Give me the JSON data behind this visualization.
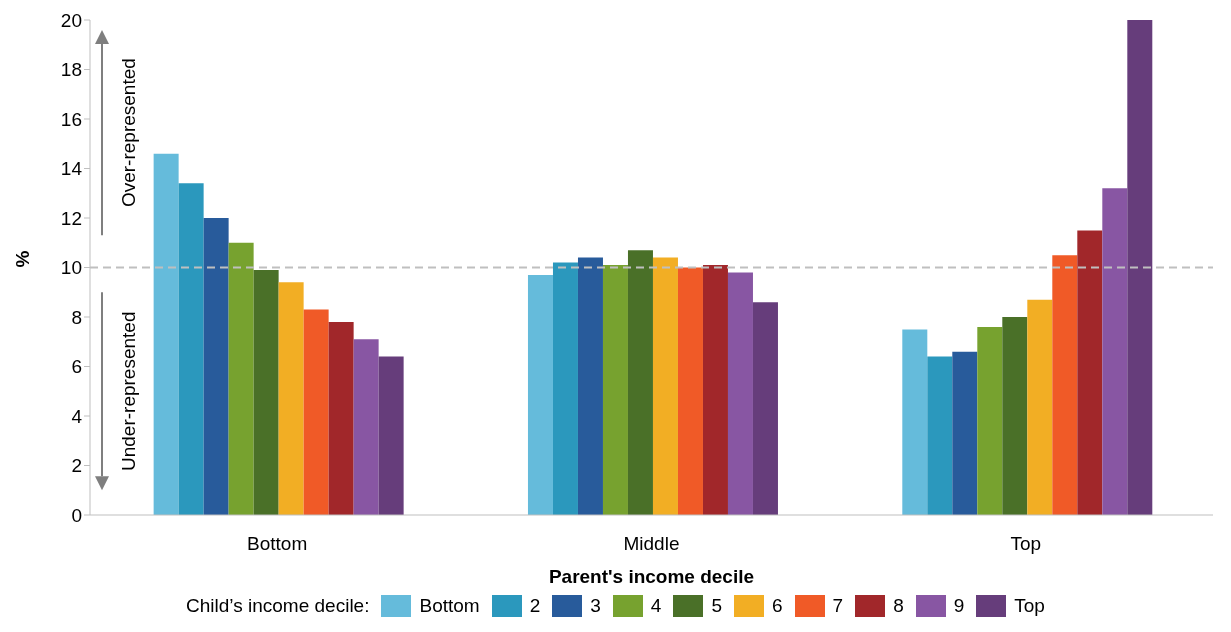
{
  "chart_data": {
    "type": "bar",
    "xlabel": "Parent's income decile",
    "ylabel": "%",
    "legend_title": "Child’s income decile:",
    "legend": "bottom",
    "categories": [
      "Bottom",
      "Middle",
      "Top"
    ],
    "ylim": [
      0,
      20
    ],
    "yticks": [
      0,
      2,
      4,
      6,
      8,
      10,
      12,
      14,
      16,
      18,
      20
    ],
    "ref_lines": [
      {
        "axis": "y",
        "value": 10,
        "color": "#bfbfbf",
        "line_style": "dashed"
      }
    ],
    "annotations": [
      "Over-represented",
      "Under-represented"
    ],
    "series": [
      {
        "name": "Bottom",
        "color": "#65bbdb",
        "values": [
          14.6,
          9.7,
          7.5
        ]
      },
      {
        "name": "2",
        "color": "#2b98bd",
        "values": [
          13.4,
          10.2,
          6.4
        ]
      },
      {
        "name": "3",
        "color": "#285b9b",
        "values": [
          12.0,
          10.4,
          6.6
        ]
      },
      {
        "name": "4",
        "color": "#77a22f",
        "values": [
          11.0,
          10.1,
          7.6
        ]
      },
      {
        "name": "5",
        "color": "#4a7028",
        "values": [
          9.9,
          10.7,
          8.0
        ]
      },
      {
        "name": "6",
        "color": "#f2ae24",
        "values": [
          9.4,
          10.4,
          8.7
        ]
      },
      {
        "name": "7",
        "color": "#f05a27",
        "values": [
          8.3,
          10.0,
          10.5
        ]
      },
      {
        "name": "8",
        "color": "#a1272a",
        "values": [
          7.8,
          10.1,
          11.5
        ]
      },
      {
        "name": "9",
        "color": "#8856a3",
        "values": [
          7.1,
          9.8,
          13.2
        ]
      },
      {
        "name": "Top",
        "color": "#663d7b",
        "values": [
          6.4,
          8.6,
          20
        ]
      }
    ]
  }
}
